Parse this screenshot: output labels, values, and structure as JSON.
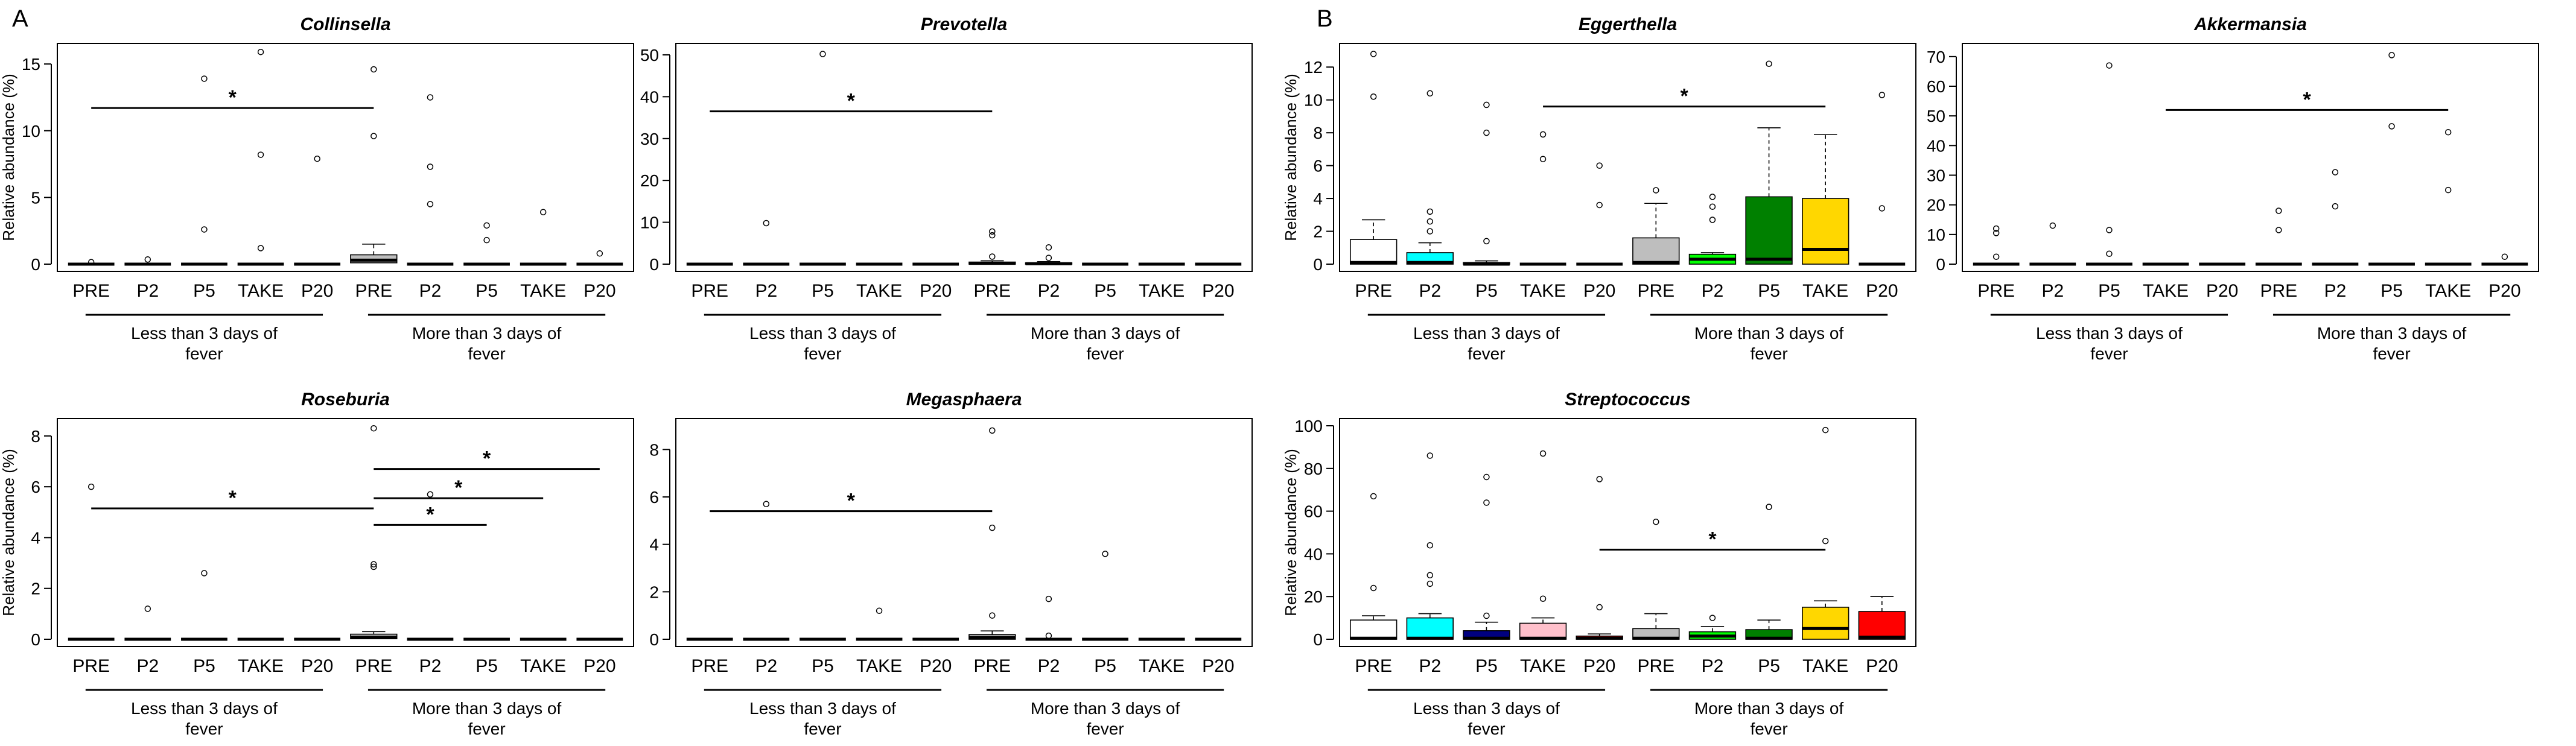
{
  "panel_letters": [
    "A",
    "B"
  ],
  "chart_data": [
    {
      "panel": "A",
      "type": "box",
      "title": "Collinsella",
      "ylabel": "Relative abundance (%)",
      "ylim": [
        0,
        16
      ],
      "yticks": [
        0,
        5,
        10,
        15
      ],
      "categories": [
        "PRE",
        "P2",
        "P5",
        "TAKE",
        "P20",
        "PRE",
        "P2",
        "P5",
        "TAKE",
        "P20"
      ],
      "groups": [
        "Less than 3 days of fever",
        "More than 3 days of fever"
      ],
      "boxes": [
        {
          "q1": 0,
          "median": 0,
          "q3": 0,
          "whisker_high": 0,
          "color": "#ffffff",
          "outliers": [
            0.15
          ]
        },
        {
          "q1": 0,
          "median": 0,
          "q3": 0,
          "whisker_high": 0,
          "color": "#00ffff",
          "outliers": [
            0.35
          ]
        },
        {
          "q1": 0,
          "median": 0,
          "q3": 0,
          "whisker_high": 0,
          "color": "#000080",
          "outliers": [
            2.6,
            13.9
          ]
        },
        {
          "q1": 0,
          "median": 0,
          "q3": 0,
          "whisker_high": 0,
          "color": "#ffc0cb",
          "outliers": [
            1.2,
            8.2,
            15.9
          ]
        },
        {
          "q1": 0,
          "median": 0,
          "q3": 0,
          "whisker_high": 0,
          "color": "#ff0000",
          "outliers": [
            7.9
          ]
        },
        {
          "q1": 0.1,
          "median": 0.3,
          "q3": 0.7,
          "whisker_high": 1.5,
          "color": "#bebebe",
          "outliers": [
            9.6,
            14.6
          ]
        },
        {
          "q1": 0,
          "median": 0,
          "q3": 0,
          "whisker_high": 0,
          "color": "#00ff00",
          "outliers": [
            4.5,
            7.3,
            12.5
          ]
        },
        {
          "q1": 0,
          "median": 0,
          "q3": 0,
          "whisker_high": 0,
          "color": "#008000",
          "outliers": [
            1.8,
            2.9
          ]
        },
        {
          "q1": 0,
          "median": 0,
          "q3": 0,
          "whisker_high": 0,
          "color": "#ffd700",
          "outliers": [
            3.9
          ]
        },
        {
          "q1": 0,
          "median": 0,
          "q3": 0,
          "whisker_high": 0,
          "color": "#ff0000",
          "outliers": [
            0.8
          ]
        }
      ],
      "significance": [
        {
          "from": 0,
          "to": 5,
          "y": 11.7,
          "label": "*"
        }
      ]
    },
    {
      "panel": "A",
      "type": "box",
      "title": "Prevotella",
      "ylabel": "",
      "ylim": [
        0,
        51
      ],
      "yticks": [
        0,
        10,
        20,
        30,
        40,
        50
      ],
      "categories": [
        "PRE",
        "P2",
        "P5",
        "TAKE",
        "P20",
        "PRE",
        "P2",
        "P5",
        "TAKE",
        "P20"
      ],
      "groups": [
        "Less than 3 days of fever",
        "More than 3 days of fever"
      ],
      "boxes": [
        {
          "q1": 0,
          "median": 0,
          "q3": 0,
          "whisker_high": 0,
          "color": "#ffffff",
          "outliers": []
        },
        {
          "q1": 0,
          "median": 0,
          "q3": 0,
          "whisker_high": 0,
          "color": "#00ffff",
          "outliers": [
            9.8
          ]
        },
        {
          "q1": 0,
          "median": 0,
          "q3": 0,
          "whisker_high": 0,
          "color": "#000080",
          "outliers": [
            50.2
          ]
        },
        {
          "q1": 0,
          "median": 0,
          "q3": 0,
          "whisker_high": 0,
          "color": "#ffc0cb",
          "outliers": []
        },
        {
          "q1": 0,
          "median": 0,
          "q3": 0,
          "whisker_high": 0,
          "color": "#ff0000",
          "outliers": []
        },
        {
          "q1": 0,
          "median": 0.2,
          "q3": 0.5,
          "whisker_high": 0.8,
          "color": "#bebebe",
          "outliers": [
            1.8,
            6.9,
            7.8
          ]
        },
        {
          "q1": 0,
          "median": 0.1,
          "q3": 0.3,
          "whisker_high": 0.6,
          "color": "#00ff00",
          "outliers": [
            1.5,
            4.0
          ]
        },
        {
          "q1": 0,
          "median": 0,
          "q3": 0,
          "whisker_high": 0,
          "color": "#008000",
          "outliers": []
        },
        {
          "q1": 0,
          "median": 0,
          "q3": 0,
          "whisker_high": 0,
          "color": "#ffd700",
          "outliers": []
        },
        {
          "q1": 0,
          "median": 0,
          "q3": 0,
          "whisker_high": 0,
          "color": "#ff0000",
          "outliers": []
        }
      ],
      "significance": [
        {
          "from": 0,
          "to": 5,
          "y": 36.5,
          "label": "*"
        }
      ]
    },
    {
      "panel": "A",
      "type": "box",
      "title": "Roseburia",
      "ylabel": "Relative abundance (%)",
      "ylim": [
        0,
        8.4
      ],
      "yticks": [
        0,
        2,
        4,
        6,
        8
      ],
      "categories": [
        "PRE",
        "P2",
        "P5",
        "TAKE",
        "P20",
        "PRE",
        "P2",
        "P5",
        "TAKE",
        "P20"
      ],
      "groups": [
        "Less than 3 days of fever",
        "More than 3 days of fever"
      ],
      "boxes": [
        {
          "q1": 0,
          "median": 0,
          "q3": 0,
          "whisker_high": 0,
          "color": "#ffffff",
          "outliers": [
            6.0
          ]
        },
        {
          "q1": 0,
          "median": 0,
          "q3": 0,
          "whisker_high": 0,
          "color": "#00ffff",
          "outliers": [
            1.2
          ]
        },
        {
          "q1": 0,
          "median": 0,
          "q3": 0,
          "whisker_high": 0,
          "color": "#000080",
          "outliers": [
            2.6
          ]
        },
        {
          "q1": 0,
          "median": 0,
          "q3": 0,
          "whisker_high": 0,
          "color": "#ffc0cb",
          "outliers": []
        },
        {
          "q1": 0,
          "median": 0,
          "q3": 0,
          "whisker_high": 0,
          "color": "#ff0000",
          "outliers": []
        },
        {
          "q1": 0.02,
          "median": 0.08,
          "q3": 0.2,
          "whisker_high": 0.3,
          "color": "#bebebe",
          "outliers": [
            2.85,
            2.95,
            8.3
          ]
        },
        {
          "q1": 0,
          "median": 0,
          "q3": 0,
          "whisker_high": 0,
          "color": "#00ff00",
          "outliers": [
            5.7
          ]
        },
        {
          "q1": 0,
          "median": 0,
          "q3": 0,
          "whisker_high": 0,
          "color": "#008000",
          "outliers": []
        },
        {
          "q1": 0,
          "median": 0,
          "q3": 0,
          "whisker_high": 0,
          "color": "#ffd700",
          "outliers": []
        },
        {
          "q1": 0,
          "median": 0,
          "q3": 0,
          "whisker_high": 0,
          "color": "#ff0000",
          "outliers": []
        }
      ],
      "significance": [
        {
          "from": 0,
          "to": 5,
          "y": 5.15,
          "label": "*"
        },
        {
          "from": 5,
          "to": 7,
          "y": 4.5,
          "label": "*"
        },
        {
          "from": 5,
          "to": 8,
          "y": 5.55,
          "label": "*"
        },
        {
          "from": 5,
          "to": 9,
          "y": 6.7,
          "label": "*"
        }
      ]
    },
    {
      "panel": "A",
      "type": "box",
      "title": "Megasphaera",
      "ylabel": "",
      "ylim": [
        0,
        9.0
      ],
      "yticks": [
        0,
        2,
        4,
        6,
        8
      ],
      "categories": [
        "PRE",
        "P2",
        "P5",
        "TAKE",
        "P20",
        "PRE",
        "P2",
        "P5",
        "TAKE",
        "P20"
      ],
      "groups": [
        "Less than 3 days of fever",
        "More than 3 days of fever"
      ],
      "boxes": [
        {
          "q1": 0,
          "median": 0,
          "q3": 0,
          "whisker_high": 0,
          "color": "#ffffff",
          "outliers": []
        },
        {
          "q1": 0,
          "median": 0,
          "q3": 0,
          "whisker_high": 0,
          "color": "#00ffff",
          "outliers": [
            5.7
          ]
        },
        {
          "q1": 0,
          "median": 0,
          "q3": 0,
          "whisker_high": 0,
          "color": "#000080",
          "outliers": []
        },
        {
          "q1": 0,
          "median": 0,
          "q3": 0,
          "whisker_high": 0,
          "color": "#ffc0cb",
          "outliers": [
            1.2
          ]
        },
        {
          "q1": 0,
          "median": 0,
          "q3": 0,
          "whisker_high": 0,
          "color": "#ff0000",
          "outliers": []
        },
        {
          "q1": 0,
          "median": 0.08,
          "q3": 0.2,
          "whisker_high": 0.35,
          "color": "#bebebe",
          "outliers": [
            1.0,
            4.7,
            8.8
          ]
        },
        {
          "q1": 0,
          "median": 0,
          "q3": 0,
          "whisker_high": 0,
          "color": "#00ff00",
          "outliers": [
            0.15,
            1.7
          ]
        },
        {
          "q1": 0,
          "median": 0,
          "q3": 0,
          "whisker_high": 0,
          "color": "#008000",
          "outliers": [
            3.6
          ]
        },
        {
          "q1": 0,
          "median": 0,
          "q3": 0,
          "whisker_high": 0,
          "color": "#ffd700",
          "outliers": []
        },
        {
          "q1": 0,
          "median": 0,
          "q3": 0,
          "whisker_high": 0,
          "color": "#ff0000",
          "outliers": []
        }
      ],
      "significance": [
        {
          "from": 0,
          "to": 5,
          "y": 5.4,
          "label": "*"
        }
      ]
    },
    {
      "panel": "B",
      "type": "box",
      "title": "Eggerthella",
      "ylabel": "Relative abundance (%)",
      "ylim": [
        0,
        13
      ],
      "yticks": [
        0,
        2,
        4,
        6,
        8,
        10,
        12
      ],
      "categories": [
        "PRE",
        "P2",
        "P5",
        "TAKE",
        "P20",
        "PRE",
        "P2",
        "P5",
        "TAKE",
        "P20"
      ],
      "groups": [
        "Less than 3 days of fever",
        "More than 3 days of fever"
      ],
      "boxes": [
        {
          "q1": 0,
          "median": 0.1,
          "q3": 1.5,
          "whisker_high": 2.7,
          "color": "#ffffff",
          "outliers": [
            10.2,
            12.8
          ]
        },
        {
          "q1": 0,
          "median": 0.1,
          "q3": 0.7,
          "whisker_high": 1.3,
          "color": "#00ffff",
          "outliers": [
            2.0,
            2.6,
            3.2,
            10.4
          ]
        },
        {
          "q1": 0,
          "median": 0,
          "q3": 0.1,
          "whisker_high": 0.2,
          "color": "#000080",
          "outliers": [
            1.4,
            8.0,
            9.7
          ]
        },
        {
          "q1": 0,
          "median": 0,
          "q3": 0,
          "whisker_high": 0,
          "color": "#ffc0cb",
          "outliers": [
            6.4,
            7.9
          ]
        },
        {
          "q1": 0,
          "median": 0,
          "q3": 0,
          "whisker_high": 0,
          "color": "#ff0000",
          "outliers": [
            3.6,
            6.0
          ]
        },
        {
          "q1": 0,
          "median": 0.1,
          "q3": 1.6,
          "whisker_high": 3.7,
          "color": "#bebebe",
          "outliers": [
            4.5
          ]
        },
        {
          "q1": 0,
          "median": 0.3,
          "q3": 0.6,
          "whisker_high": 0.7,
          "color": "#00ff00",
          "outliers": [
            2.7,
            3.5,
            4.1
          ]
        },
        {
          "q1": 0,
          "median": 0.3,
          "q3": 4.1,
          "whisker_high": 8.3,
          "color": "#008000",
          "outliers": [
            12.2
          ]
        },
        {
          "q1": 0,
          "median": 0.9,
          "q3": 4.0,
          "whisker_high": 7.9,
          "color": "#ffd700",
          "outliers": []
        },
        {
          "q1": 0,
          "median": 0,
          "q3": 0,
          "whisker_high": 0,
          "color": "#ff0000",
          "outliers": [
            3.4,
            10.3
          ]
        }
      ],
      "significance": [
        {
          "from": 3,
          "to": 8,
          "y": 9.6,
          "label": "*"
        }
      ]
    },
    {
      "panel": "B",
      "type": "box",
      "title": "Akkermansia",
      "ylabel": "",
      "ylim": [
        0,
        72
      ],
      "yticks": [
        0,
        10,
        20,
        30,
        40,
        50,
        60,
        70
      ],
      "categories": [
        "PRE",
        "P2",
        "P5",
        "TAKE",
        "P20",
        "PRE",
        "P2",
        "P5",
        "TAKE",
        "P20"
      ],
      "groups": [
        "Less than 3 days of fever",
        "More than 3 days of fever"
      ],
      "boxes": [
        {
          "q1": 0,
          "median": 0,
          "q3": 0,
          "whisker_high": 0,
          "color": "#ffffff",
          "outliers": [
            2.5,
            10.5,
            12.0
          ]
        },
        {
          "q1": 0,
          "median": 0,
          "q3": 0,
          "whisker_high": 0,
          "color": "#00ffff",
          "outliers": [
            13.0
          ]
        },
        {
          "q1": 0,
          "median": 0,
          "q3": 0,
          "whisker_high": 0,
          "color": "#000080",
          "outliers": [
            3.5,
            11.5,
            67.0
          ]
        },
        {
          "q1": 0,
          "median": 0,
          "q3": 0,
          "whisker_high": 0,
          "color": "#ffc0cb",
          "outliers": []
        },
        {
          "q1": 0,
          "median": 0,
          "q3": 0,
          "whisker_high": 0,
          "color": "#ff0000",
          "outliers": []
        },
        {
          "q1": 0,
          "median": 0,
          "q3": 0,
          "whisker_high": 0,
          "color": "#bebebe",
          "outliers": [
            11.5,
            18.0
          ]
        },
        {
          "q1": 0,
          "median": 0,
          "q3": 0,
          "whisker_high": 0,
          "color": "#00ff00",
          "outliers": [
            19.5,
            31.0
          ]
        },
        {
          "q1": 0,
          "median": 0,
          "q3": 0,
          "whisker_high": 0,
          "color": "#008000",
          "outliers": [
            46.5,
            70.5
          ]
        },
        {
          "q1": 0,
          "median": 0,
          "q3": 0,
          "whisker_high": 0,
          "color": "#ffd700",
          "outliers": [
            25.0,
            44.5
          ]
        },
        {
          "q1": 0,
          "median": 0,
          "q3": 0,
          "whisker_high": 0,
          "color": "#ff0000",
          "outliers": [
            2.5
          ]
        }
      ],
      "significance": [
        {
          "from": 3,
          "to": 8,
          "y": 52.0,
          "label": "*"
        }
      ]
    },
    {
      "panel": "B",
      "type": "box",
      "title": "Streptococcus",
      "ylabel": "Relative abundance (%)",
      "ylim": [
        0,
        100
      ],
      "yticks": [
        0,
        20,
        40,
        60,
        80,
        100
      ],
      "categories": [
        "PRE",
        "P2",
        "P5",
        "TAKE",
        "P20",
        "PRE",
        "P2",
        "P5",
        "TAKE",
        "P20"
      ],
      "groups": [
        "Less than 3 days of fever",
        "More than 3 days of fever"
      ],
      "boxes": [
        {
          "q1": 0,
          "median": 0.5,
          "q3": 9,
          "whisker_high": 11,
          "color": "#ffffff",
          "outliers": [
            24,
            67
          ]
        },
        {
          "q1": 0,
          "median": 0.5,
          "q3": 10,
          "whisker_high": 12,
          "color": "#00ffff",
          "outliers": [
            26,
            30,
            44,
            86
          ]
        },
        {
          "q1": 0,
          "median": 0.5,
          "q3": 4,
          "whisker_high": 8,
          "color": "#000080",
          "outliers": [
            11,
            64,
            76
          ]
        },
        {
          "q1": 0,
          "median": 0.5,
          "q3": 7.5,
          "whisker_high": 10,
          "color": "#ffc0cb",
          "outliers": [
            19,
            87
          ]
        },
        {
          "q1": 0,
          "median": 0.5,
          "q3": 1.5,
          "whisker_high": 2.5,
          "color": "#ff0000",
          "outliers": [
            15,
            75
          ]
        },
        {
          "q1": 0,
          "median": 0.5,
          "q3": 5,
          "whisker_high": 12,
          "color": "#bebebe",
          "outliers": [
            55
          ]
        },
        {
          "q1": 0,
          "median": 1.5,
          "q3": 3.5,
          "whisker_high": 6,
          "color": "#00ff00",
          "outliers": [
            10
          ]
        },
        {
          "q1": 0,
          "median": 0.5,
          "q3": 4.5,
          "whisker_high": 9,
          "color": "#008000",
          "outliers": [
            62
          ]
        },
        {
          "q1": 0,
          "median": 5,
          "q3": 15,
          "whisker_high": 18,
          "color": "#ffd700",
          "outliers": [
            46,
            98
          ]
        },
        {
          "q1": 0,
          "median": 1,
          "q3": 13,
          "whisker_high": 20,
          "color": "#ff0000",
          "outliers": []
        }
      ],
      "significance": [
        {
          "from": 4,
          "to": 8,
          "y": 42,
          "label": "*"
        }
      ]
    }
  ]
}
